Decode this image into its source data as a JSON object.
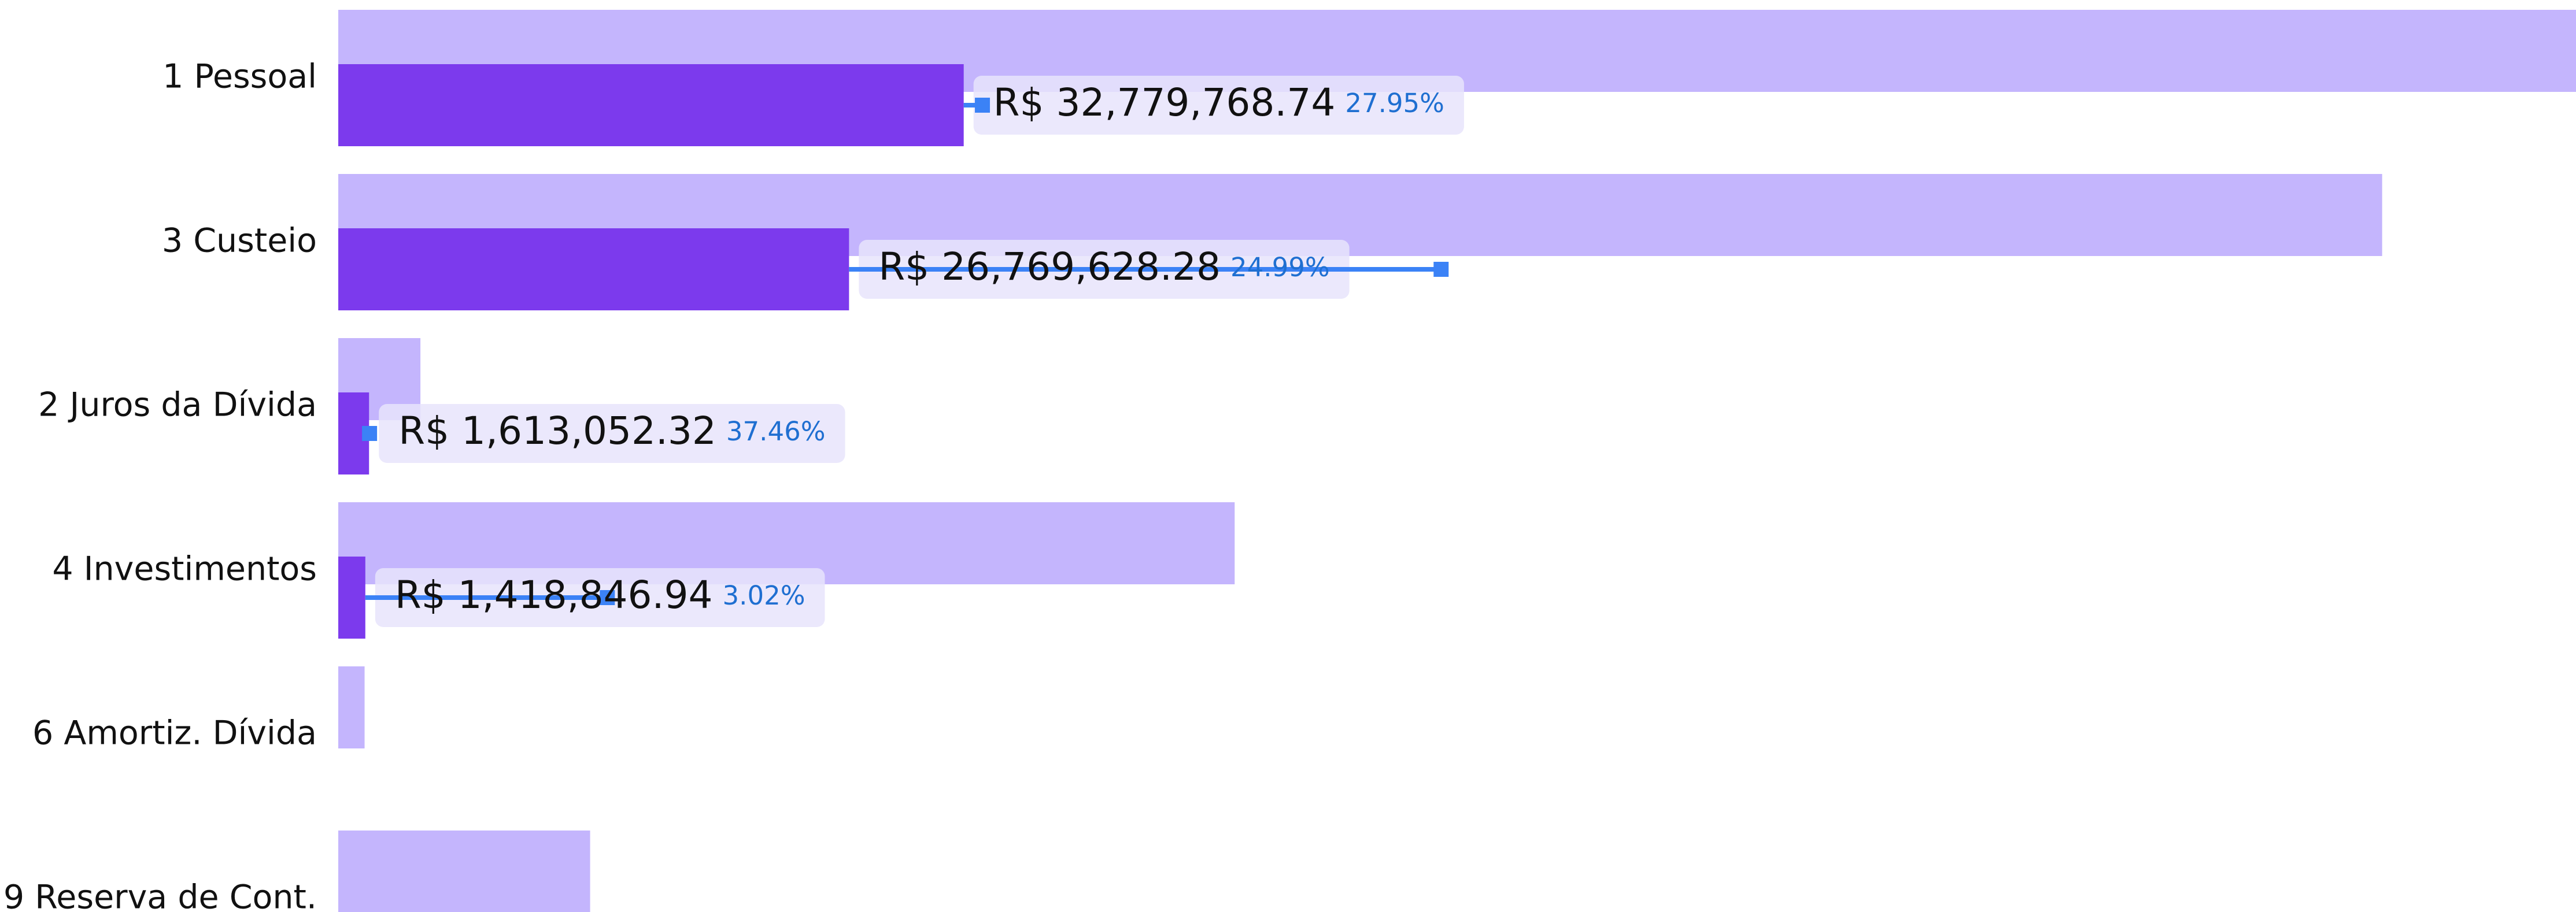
{
  "chart_data": {
    "type": "bar",
    "orientation": "horizontal",
    "categories": [
      "1 Pessoal",
      "3 Custeio",
      "2 Juros da Dívida",
      "4 Investimentos",
      "6 Amortiz. Dívida",
      "9 Reserva de Cont."
    ],
    "series": [
      {
        "color": "#c4b5fd",
        "values": [
          117280000,
          107120000,
          4306000,
          46980000,
          1380000,
          13200000
        ]
      },
      {
        "color": "#7c3aed",
        "values": [
          32779768.74,
          26769628.28,
          1613052.32,
          1418846.94,
          null,
          null
        ],
        "value_labels": [
          "R$ 32,779,768.74",
          "R$ 26,769,628.28",
          "R$ 1,613,052.32",
          "R$ 1,418,846.94",
          null,
          null
        ]
      },
      {
        "type": "marker",
        "color": "#3b82f6",
        "values": [
          33760000,
          57800000,
          1640000,
          14100000,
          null,
          null
        ]
      }
    ],
    "percentages": {
      "color": "#1f6fd1",
      "values": [
        27.95,
        24.99,
        37.46,
        3.02,
        null,
        null
      ],
      "value_labels": [
        "27.95%",
        "24.99%",
        "37.46%",
        "3.02%",
        null,
        null
      ]
    }
  }
}
